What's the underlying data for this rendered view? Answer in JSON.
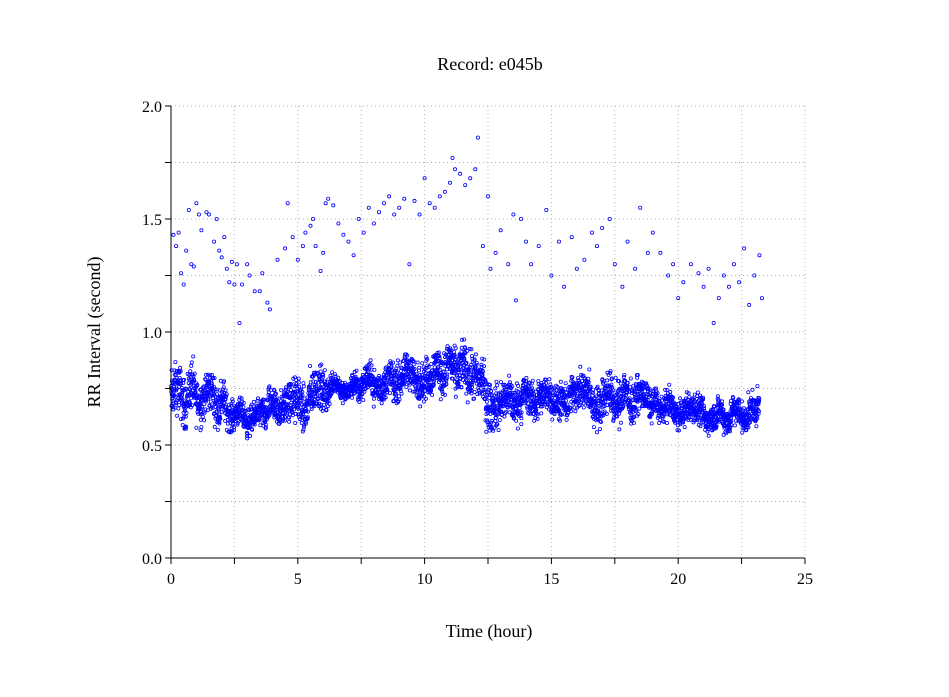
{
  "chart_data": {
    "type": "scatter",
    "title": "Record:  e045b",
    "xlabel": "Time (hour)",
    "ylabel": "RR Interval (second)",
    "xlim": [
      0,
      25
    ],
    "ylim": [
      0,
      2.0
    ],
    "xticks": [
      0,
      5,
      10,
      15,
      20,
      25
    ],
    "xtick_labels": [
      "0",
      "5",
      "10",
      "15",
      "20",
      "25"
    ],
    "xminor_step": 2.5,
    "yticks": [
      0,
      0.5,
      1.0,
      1.5,
      2.0
    ],
    "ytick_labels": [
      "0.0",
      "0.5",
      "1.0",
      "1.5",
      "2.0"
    ],
    "yminor_step": 0.25,
    "grid": true,
    "marker_color": "#0000ff",
    "main_band_estimate": [
      {
        "x": 0,
        "low": 0.58,
        "high": 0.82
      },
      {
        "x": 1,
        "low": 0.62,
        "high": 0.85
      },
      {
        "x": 2,
        "low": 0.6,
        "high": 0.78
      },
      {
        "x": 2.5,
        "low": 0.57,
        "high": 0.7
      },
      {
        "x": 3,
        "low": 0.55,
        "high": 0.68
      },
      {
        "x": 3.5,
        "low": 0.57,
        "high": 0.7
      },
      {
        "x": 4,
        "low": 0.58,
        "high": 0.75
      },
      {
        "x": 4.5,
        "low": 0.6,
        "high": 0.78
      },
      {
        "x": 5,
        "low": 0.55,
        "high": 0.78
      },
      {
        "x": 5.5,
        "low": 0.58,
        "high": 0.8
      },
      {
        "x": 6,
        "low": 0.65,
        "high": 0.85
      },
      {
        "x": 6.5,
        "low": 0.72,
        "high": 0.82
      },
      {
        "x": 7,
        "low": 0.68,
        "high": 0.78
      },
      {
        "x": 7.5,
        "low": 0.7,
        "high": 0.85
      },
      {
        "x": 8,
        "low": 0.7,
        "high": 0.85
      },
      {
        "x": 9,
        "low": 0.7,
        "high": 0.88
      },
      {
        "x": 10,
        "low": 0.72,
        "high": 0.9
      },
      {
        "x": 11,
        "low": 0.75,
        "high": 0.95
      },
      {
        "x": 12,
        "low": 0.72,
        "high": 0.95
      },
      {
        "x": 12.5,
        "low": 0.58,
        "high": 0.82
      },
      {
        "x": 13,
        "low": 0.6,
        "high": 0.8
      },
      {
        "x": 14,
        "low": 0.62,
        "high": 0.8
      },
      {
        "x": 15,
        "low": 0.62,
        "high": 0.78
      },
      {
        "x": 16,
        "low": 0.62,
        "high": 0.8
      },
      {
        "x": 17,
        "low": 0.6,
        "high": 0.8
      },
      {
        "x": 18,
        "low": 0.62,
        "high": 0.82
      },
      {
        "x": 19,
        "low": 0.62,
        "high": 0.75
      },
      {
        "x": 20,
        "low": 0.58,
        "high": 0.72
      },
      {
        "x": 21,
        "low": 0.56,
        "high": 0.7
      },
      {
        "x": 22,
        "low": 0.56,
        "high": 0.7
      },
      {
        "x": 23.2,
        "low": 0.56,
        "high": 0.72
      }
    ],
    "outliers": [
      [
        0.1,
        1.43
      ],
      [
        0.2,
        1.38
      ],
      [
        0.3,
        1.44
      ],
      [
        0.4,
        1.26
      ],
      [
        0.5,
        1.21
      ],
      [
        0.6,
        1.36
      ],
      [
        0.7,
        1.54
      ],
      [
        0.8,
        1.3
      ],
      [
        0.9,
        1.29
      ],
      [
        1,
        1.57
      ],
      [
        1.1,
        1.52
      ],
      [
        1.2,
        1.45
      ],
      [
        1.4,
        1.53
      ],
      [
        1.5,
        1.52
      ],
      [
        1.7,
        1.4
      ],
      [
        1.8,
        1.5
      ],
      [
        1.9,
        1.36
      ],
      [
        2,
        1.33
      ],
      [
        2.1,
        1.42
      ],
      [
        2.2,
        1.28
      ],
      [
        2.3,
        1.22
      ],
      [
        2.4,
        1.31
      ],
      [
        2.5,
        1.21
      ],
      [
        2.6,
        1.3
      ],
      [
        2.7,
        1.04
      ],
      [
        2.8,
        1.21
      ],
      [
        3,
        1.3
      ],
      [
        3.1,
        1.25
      ],
      [
        3.3,
        1.18
      ],
      [
        3.5,
        1.18
      ],
      [
        3.6,
        1.26
      ],
      [
        3.8,
        1.13
      ],
      [
        3.9,
        1.1
      ],
      [
        4.2,
        1.32
      ],
      [
        4.5,
        1.37
      ],
      [
        4.6,
        1.57
      ],
      [
        4.8,
        1.42
      ],
      [
        5,
        1.32
      ],
      [
        5.2,
        1.38
      ],
      [
        5.3,
        1.44
      ],
      [
        5.5,
        1.47
      ],
      [
        5.6,
        1.5
      ],
      [
        5.7,
        1.38
      ],
      [
        5.9,
        1.27
      ],
      [
        6,
        1.35
      ],
      [
        6.1,
        1.57
      ],
      [
        6.2,
        1.59
      ],
      [
        6.4,
        1.56
      ],
      [
        6.6,
        1.48
      ],
      [
        6.8,
        1.43
      ],
      [
        7,
        1.4
      ],
      [
        7.2,
        1.34
      ],
      [
        7.4,
        1.5
      ],
      [
        7.6,
        1.44
      ],
      [
        7.8,
        1.55
      ],
      [
        8,
        1.48
      ],
      [
        8.2,
        1.53
      ],
      [
        8.4,
        1.57
      ],
      [
        8.6,
        1.6
      ],
      [
        8.8,
        1.52
      ],
      [
        9,
        1.55
      ],
      [
        9.2,
        1.59
      ],
      [
        9.4,
        1.3
      ],
      [
        9.6,
        1.58
      ],
      [
        9.8,
        1.52
      ],
      [
        10,
        1.68
      ],
      [
        10.2,
        1.57
      ],
      [
        10.4,
        1.55
      ],
      [
        10.6,
        1.6
      ],
      [
        10.8,
        1.62
      ],
      [
        11,
        1.66
      ],
      [
        11.1,
        1.77
      ],
      [
        11.2,
        1.72
      ],
      [
        11.4,
        1.7
      ],
      [
        11.6,
        1.65
      ],
      [
        11.8,
        1.68
      ],
      [
        12,
        1.72
      ],
      [
        12.1,
        1.86
      ],
      [
        12.3,
        1.38
      ],
      [
        12.5,
        1.6
      ],
      [
        12.6,
        1.28
      ],
      [
        12.8,
        1.35
      ],
      [
        13,
        1.45
      ],
      [
        13.3,
        1.3
      ],
      [
        13.5,
        1.52
      ],
      [
        13.6,
        1.14
      ],
      [
        13.8,
        1.5
      ],
      [
        14,
        1.4
      ],
      [
        14.2,
        1.3
      ],
      [
        14.5,
        1.38
      ],
      [
        14.8,
        1.54
      ],
      [
        15,
        1.25
      ],
      [
        15.3,
        1.4
      ],
      [
        15.5,
        1.2
      ],
      [
        15.8,
        1.42
      ],
      [
        16,
        1.28
      ],
      [
        16.3,
        1.32
      ],
      [
        16.6,
        1.44
      ],
      [
        16.8,
        1.38
      ],
      [
        17,
        1.46
      ],
      [
        17.3,
        1.5
      ],
      [
        17.5,
        1.3
      ],
      [
        17.8,
        1.2
      ],
      [
        18,
        1.4
      ],
      [
        18.3,
        1.28
      ],
      [
        18.5,
        1.55
      ],
      [
        18.8,
        1.35
      ],
      [
        19,
        1.44
      ],
      [
        19.3,
        1.35
      ],
      [
        19.6,
        1.25
      ],
      [
        19.8,
        1.3
      ],
      [
        20,
        1.15
      ],
      [
        20.2,
        1.22
      ],
      [
        20.5,
        1.3
      ],
      [
        20.8,
        1.26
      ],
      [
        21,
        1.2
      ],
      [
        21.2,
        1.28
      ],
      [
        21.4,
        1.04
      ],
      [
        21.6,
        1.15
      ],
      [
        21.8,
        1.25
      ],
      [
        22,
        1.2
      ],
      [
        22.2,
        1.3
      ],
      [
        22.4,
        1.22
      ],
      [
        22.6,
        1.37
      ],
      [
        22.8,
        1.12
      ],
      [
        23,
        1.25
      ],
      [
        23.2,
        1.34
      ],
      [
        23.3,
        1.15
      ]
    ]
  }
}
